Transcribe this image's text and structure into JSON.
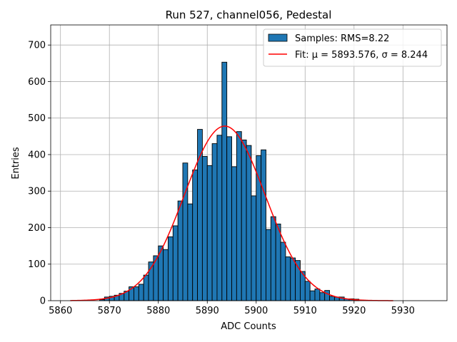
{
  "chart_data": {
    "type": "bar",
    "title": "Run 527, channel056, Pedestal",
    "xlabel": "ADC Counts",
    "ylabel": "Entries",
    "xlim": [
      5858,
      5939
    ],
    "ylim": [
      0,
      755
    ],
    "xticks": [
      5860,
      5870,
      5880,
      5890,
      5900,
      5910,
      5920,
      5930
    ],
    "yticks": [
      0,
      100,
      200,
      300,
      400,
      500,
      600,
      700
    ],
    "grid": true,
    "legend_position": "top-right",
    "histogram": {
      "name": "Samples: RMS=8.22",
      "bin_width": 1,
      "bin_edges_start": 5868,
      "values": [
        3,
        10,
        12,
        15,
        20,
        26,
        38,
        38,
        45,
        70,
        106,
        123,
        150,
        140,
        175,
        205,
        273,
        377,
        265,
        358,
        469,
        395,
        370,
        430,
        453,
        653,
        449,
        367,
        463,
        440,
        425,
        287,
        397,
        413,
        195,
        230,
        210,
        160,
        120,
        117,
        110,
        80,
        53,
        27,
        32,
        22,
        28,
        12,
        10,
        10,
        5,
        5,
        4
      ]
    },
    "fit": {
      "name": "Fit: μ = 5893.576, σ = 8.244",
      "mu": 5893.576,
      "sigma": 8.244,
      "amplitude": 478,
      "range": [
        5862,
        5928
      ]
    },
    "colors": {
      "bar_fill": "#1f77b4",
      "bar_edge": "#000000",
      "fit_line": "#ff0000",
      "grid": "#b0b0b0"
    }
  }
}
